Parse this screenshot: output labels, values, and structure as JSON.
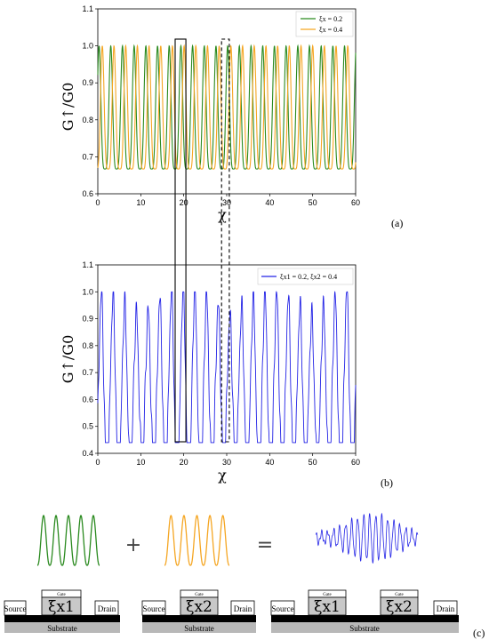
{
  "colors": {
    "green": "#2a8a1f",
    "orange": "#f5a623",
    "blue": "#2323e6",
    "gray": "#b8b8b8",
    "black": "#000000"
  },
  "chart_data": [
    {
      "type": "line",
      "panel": "(a)",
      "xlabel": "χ",
      "ylabel": "G↑/G0",
      "xlim": [
        0,
        60
      ],
      "ylim": [
        0.6,
        1.1
      ],
      "xticks": [
        "0",
        "10",
        "20",
        "30",
        "40",
        "50",
        "60"
      ],
      "yticks": [
        "0.6",
        "0.7",
        "0.8",
        "0.9",
        "1.0",
        "1.1"
      ],
      "grid": false,
      "legend_position": "top-right",
      "series": [
        {
          "name": "ξx = 0.2",
          "color": "#2a8a1f",
          "min": 0.667,
          "max": 1.0,
          "period": 2.72,
          "phase": 0.3
        },
        {
          "name": "ξx = 0.4",
          "color": "#f5a623",
          "min": 0.667,
          "max": 1.0,
          "period": 2.72,
          "phase": 1.05
        }
      ],
      "boxes": [
        {
          "x": [
            18.0,
            20.5
          ],
          "style": "solid"
        },
        {
          "x": [
            28.8,
            30.6
          ],
          "style": "dashed"
        }
      ]
    },
    {
      "type": "line",
      "panel": "(b)",
      "xlabel": "χ",
      "ylabel": "G↑/G0",
      "xlim": [
        0,
        60
      ],
      "ylim": [
        0.4,
        1.1
      ],
      "xticks": [
        "0",
        "10",
        "20",
        "30",
        "40",
        "50",
        "60"
      ],
      "yticks": [
        "0.4",
        "0.5",
        "0.6",
        "0.7",
        "0.8",
        "0.9",
        "1.0",
        "1.1"
      ],
      "grid": false,
      "legend_position": "top-right",
      "series": [
        {
          "name": "ξx1 = 0.2, ξx2 = 0.4",
          "color": "#2323e6",
          "beat_period": 40.0,
          "beat_center": 20.5
        }
      ],
      "boxes": [
        {
          "x": [
            18.0,
            20.5
          ],
          "style": "solid"
        },
        {
          "x": [
            28.8,
            30.6
          ],
          "style": "dashed"
        }
      ]
    }
  ],
  "schematic": {
    "panel": "(c)",
    "operators": [
      "+",
      "="
    ],
    "devices": [
      {
        "source": "Source",
        "drain": "Drain",
        "gates": [
          "Gate"
        ],
        "regions": [
          "ξx1"
        ],
        "substrate": "Substrate"
      },
      {
        "source": "Source",
        "drain": "Drain",
        "gates": [
          "Gate"
        ],
        "regions": [
          "ξx2"
        ],
        "substrate": "Substrate"
      },
      {
        "source": "Source",
        "drain": "Drain",
        "gates": [
          "Gate",
          "Gate"
        ],
        "regions": [
          "ξx1",
          "ξx2"
        ],
        "substrate": "Substrate"
      }
    ]
  }
}
